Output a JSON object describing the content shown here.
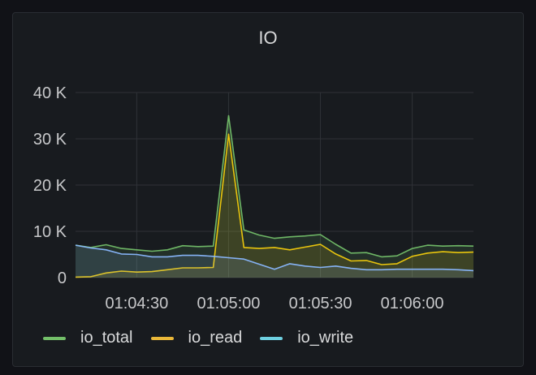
{
  "panel": {
    "title": "IO"
  },
  "chart_data": {
    "type": "area",
    "title": "IO",
    "xlabel": "",
    "ylabel": "",
    "ylim": [
      0,
      40000
    ],
    "yticks": [
      0,
      10000,
      20000,
      30000,
      40000
    ],
    "ytick_labels": [
      "0",
      "10 K",
      "20 K",
      "30 K",
      "40 K"
    ],
    "xlim": [
      "01:04:10",
      "01:06:20"
    ],
    "xticks": [
      "01:04:30",
      "01:05:00",
      "01:05:30",
      "01:06:00"
    ],
    "grid": true,
    "legend_position": "bottom-left",
    "x": [
      "01:04:10",
      "01:04:15",
      "01:04:20",
      "01:04:25",
      "01:04:30",
      "01:04:35",
      "01:04:40",
      "01:04:45",
      "01:04:50",
      "01:04:55",
      "01:05:00",
      "01:05:05",
      "01:05:10",
      "01:05:15",
      "01:05:20",
      "01:05:25",
      "01:05:30",
      "01:05:35",
      "01:05:40",
      "01:05:45",
      "01:05:50",
      "01:05:55",
      "01:06:00",
      "01:06:05",
      "01:06:10",
      "01:06:15",
      "01:06:20"
    ],
    "series": [
      {
        "name": "io_total",
        "color": "#73bf69",
        "values": [
          7000,
          6500,
          7100,
          6300,
          6000,
          5700,
          6000,
          6900,
          6700,
          6800,
          35000,
          10300,
          9200,
          8500,
          8800,
          9000,
          9300,
          7200,
          5300,
          5400,
          4500,
          4700,
          6300,
          7000,
          6800,
          6900,
          6800
        ]
      },
      {
        "name": "io_read",
        "color": "#f2cc0c",
        "values": [
          100,
          200,
          1000,
          1400,
          1200,
          1300,
          1700,
          2100,
          2100,
          2200,
          31000,
          6500,
          6300,
          6500,
          6000,
          6600,
          7200,
          5100,
          3600,
          3700,
          2800,
          3000,
          4600,
          5300,
          5600,
          5400,
          5500
        ]
      },
      {
        "name": "io_write",
        "color": "#8ab8ff",
        "values": [
          7000,
          6400,
          6000,
          5100,
          5000,
          4500,
          4500,
          4800,
          4800,
          4600,
          4300,
          4000,
          2900,
          1800,
          3000,
          2500,
          2200,
          2500,
          2000,
          1700,
          1700,
          1800,
          1800,
          1800,
          1800,
          1700,
          1500
        ]
      }
    ]
  },
  "legend": [
    {
      "label": "io_total",
      "color": "#73bf69"
    },
    {
      "label": "io_read",
      "color": "#eab839"
    },
    {
      "label": "io_write",
      "color": "#6ed0e0"
    }
  ]
}
